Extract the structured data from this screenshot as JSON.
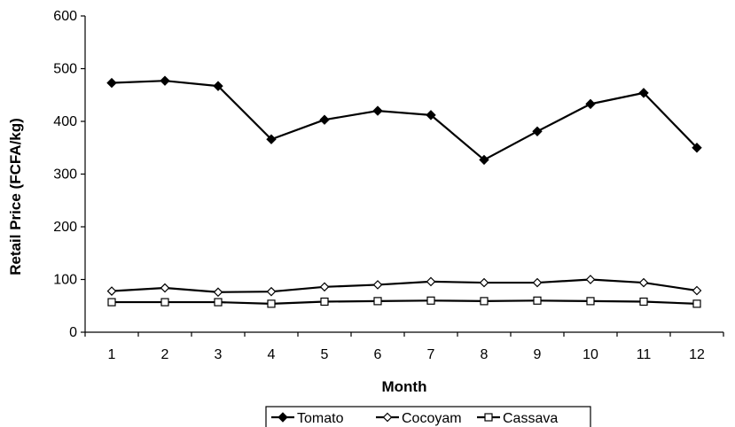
{
  "chart_data": {
    "type": "line",
    "title": "",
    "xlabel": "Month",
    "ylabel": "Retail Price (FCFA/kg)",
    "x": [
      1,
      2,
      3,
      4,
      5,
      6,
      7,
      8,
      9,
      10,
      11,
      12
    ],
    "x_tick_labels": [
      "1",
      "2",
      "3",
      "4",
      "5",
      "6",
      "7",
      "8",
      "9",
      "10",
      "11",
      "12"
    ],
    "ylim": [
      0,
      600
    ],
    "y_ticks": [
      0,
      100,
      200,
      300,
      400,
      500,
      600
    ],
    "y_tick_labels": [
      "0",
      "100",
      "200",
      "300",
      "400",
      "500",
      "600"
    ],
    "grid": false,
    "legend_position": "bottom",
    "series": [
      {
        "name": "Tomato",
        "marker": "filled-diamond",
        "color": "#000000",
        "values": [
          473,
          477,
          467,
          366,
          403,
          420,
          412,
          327,
          381,
          433,
          454,
          350
        ]
      },
      {
        "name": "Cocoyam",
        "marker": "open-diamond",
        "color": "#000000",
        "values": [
          78,
          84,
          76,
          77,
          86,
          90,
          96,
          94,
          94,
          100,
          94,
          79
        ]
      },
      {
        "name": "Cassava",
        "marker": "open-square",
        "color": "#000000",
        "values": [
          57,
          57,
          57,
          54,
          58,
          59,
          60,
          59,
          60,
          59,
          58,
          54
        ]
      }
    ]
  }
}
